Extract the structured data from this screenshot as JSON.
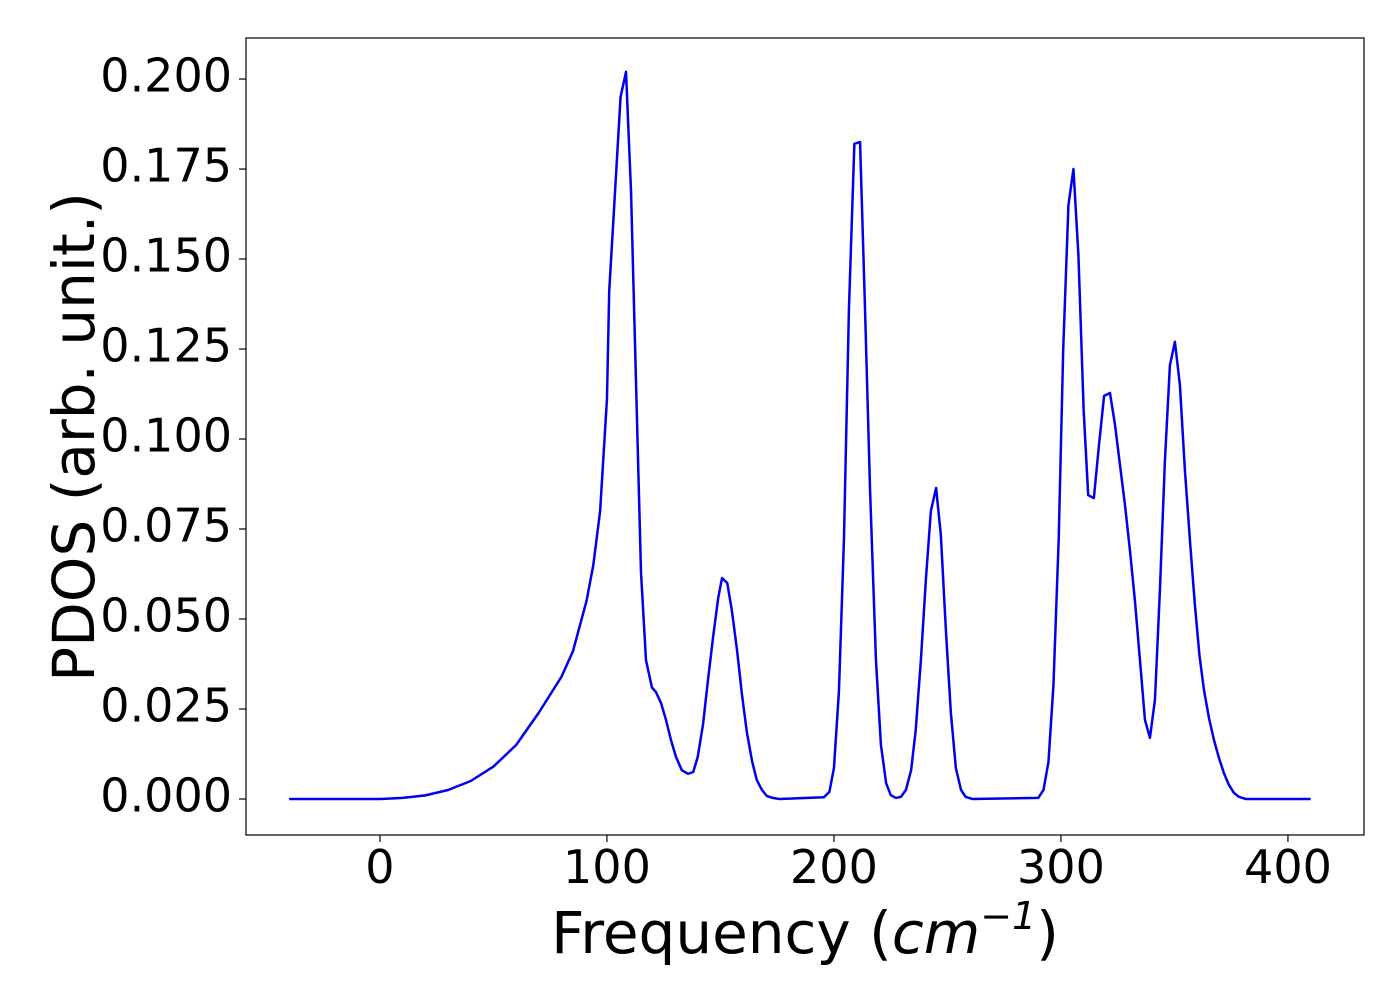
{
  "chart_data": {
    "type": "line",
    "xlabel": {
      "text": "Frequency (",
      "unit": "cm",
      "exponent": "−1",
      "close": ")"
    },
    "ylabel": "PDOS (arb. unit.)",
    "xlim": [
      -59,
      433.5
    ],
    "ylim": [
      -0.01,
      0.2114
    ],
    "xticks": [
      0,
      100,
      200,
      300,
      400
    ],
    "yticks": [
      {
        "value": 0,
        "label": "0.000"
      },
      {
        "value": 0.025,
        "label": "0.025"
      },
      {
        "value": 0.05,
        "label": "0.050"
      },
      {
        "value": 0.075,
        "label": "0.075"
      },
      {
        "value": 0.1,
        "label": "0.100"
      },
      {
        "value": 0.125,
        "label": "0.125"
      },
      {
        "value": 0.15,
        "label": "0.150"
      },
      {
        "value": 0.175,
        "label": "0.175"
      },
      {
        "value": 0.2,
        "label": "0.200"
      }
    ],
    "grid": false,
    "series": [
      {
        "color": "#0000ee",
        "x": [
          -40,
          0,
          10,
          20,
          30,
          40,
          50,
          60,
          70,
          80,
          85,
          88,
          91,
          94,
          97,
          100,
          101,
          106,
          108.4,
          110.6,
          112.8,
          115,
          117.2,
          119.8,
          121.6,
          123.8,
          126,
          128.2,
          130.4,
          133,
          135.7,
          138,
          140,
          142.3,
          144.5,
          146.7,
          149,
          150.7,
          153,
          155,
          157.3,
          159.5,
          161.7,
          164,
          166,
          168.3,
          170.5,
          173,
          176,
          195.6,
          198,
          200,
          202.2,
          204.4,
          206.6,
          209,
          211.5,
          213.7,
          215.9,
          218.5,
          220.7,
          223,
          225,
          227.3,
          229.5,
          231.7,
          234,
          236,
          238.3,
          240.5,
          242.7,
          245,
          247.1,
          249.3,
          251.5,
          253.7,
          256,
          258,
          261,
          290,
          292.3,
          294.5,
          296.7,
          299,
          301,
          303.3,
          305.5,
          307.7,
          310,
          312,
          314.5,
          316.7,
          319,
          321.6,
          323.8,
          326,
          328.2,
          330.4,
          332.6,
          334.8,
          337,
          339.2,
          341.4,
          343.6,
          345.8,
          348,
          350.2,
          352.4,
          354.6,
          356.8,
          359,
          361,
          363,
          365.2,
          367.4,
          369.6,
          371.8,
          374,
          376.2,
          378.4,
          381.5,
          410
        ],
        "values": [
          0,
          0,
          0.0003,
          0.001,
          0.0025,
          0.005,
          0.009,
          0.015,
          0.024,
          0.034,
          0.041,
          0.048,
          0.055,
          0.065,
          0.08,
          0.111,
          0.141,
          0.195,
          0.202,
          0.169,
          0.116,
          0.063,
          0.0386,
          0.031,
          0.0297,
          0.0267,
          0.022,
          0.0164,
          0.0117,
          0.008,
          0.007,
          0.0075,
          0.0117,
          0.0206,
          0.033,
          0.0447,
          0.0558,
          0.0614,
          0.06,
          0.0525,
          0.0414,
          0.0289,
          0.0183,
          0.0103,
          0.0053,
          0.0025,
          0.0008,
          0.0003,
          0,
          0.0005,
          0.002,
          0.0086,
          0.03,
          0.072,
          0.136,
          0.182,
          0.1825,
          0.136,
          0.086,
          0.0386,
          0.015,
          0.0044,
          0.0011,
          0.0003,
          0.0006,
          0.0025,
          0.008,
          0.019,
          0.0386,
          0.061,
          0.08,
          0.0864,
          0.0733,
          0.047,
          0.024,
          0.0086,
          0.0025,
          0.0006,
          0,
          0.0003,
          0.0025,
          0.0103,
          0.0317,
          0.072,
          0.125,
          0.165,
          0.175,
          0.151,
          0.108,
          0.0844,
          0.0836,
          0.098,
          0.112,
          0.1128,
          0.104,
          0.0928,
          0.0817,
          0.069,
          0.055,
          0.0386,
          0.022,
          0.017,
          0.0275,
          0.058,
          0.094,
          0.1205,
          0.127,
          0.115,
          0.0914,
          0.072,
          0.054,
          0.04,
          0.0303,
          0.0225,
          0.0164,
          0.0114,
          0.0072,
          0.0039,
          0.0017,
          0.0006,
          0,
          0
        ]
      }
    ]
  }
}
